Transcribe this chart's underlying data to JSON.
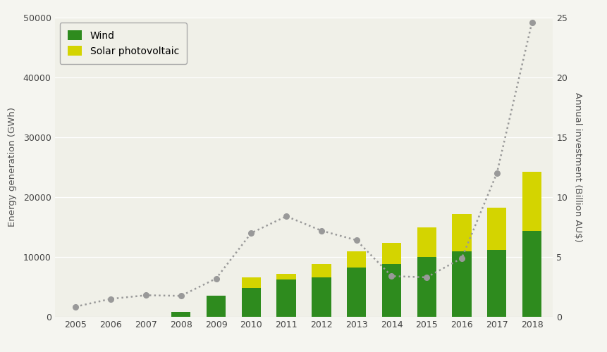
{
  "years": [
    2005,
    2006,
    2007,
    2008,
    2009,
    2010,
    2011,
    2012,
    2013,
    2014,
    2015,
    2016,
    2017,
    2018
  ],
  "wind_gwh": [
    50,
    50,
    50,
    800,
    3500,
    4800,
    6200,
    6600,
    8200,
    8800,
    10000,
    11000,
    11200,
    14400
  ],
  "solar_gwh": [
    0,
    0,
    0,
    0,
    0,
    1800,
    1000,
    2200,
    2800,
    3500,
    5000,
    6200,
    7000,
    9800
  ],
  "investment_bn": [
    0.85,
    1.5,
    1.8,
    1.75,
    3.2,
    7.0,
    8.4,
    7.2,
    6.4,
    3.4,
    3.3,
    4.9,
    12.0,
    24.6
  ],
  "wind_color": "#2e8b1e",
  "solar_color": "#d4d400",
  "investment_color": "#999999",
  "bar_width": 0.55,
  "ylabel_left": "Energy generation (GWh)",
  "ylabel_right": "Annual investment (Billion AU$)",
  "ylim_left": [
    0,
    50000
  ],
  "ylim_right": [
    0,
    25
  ],
  "yticks_left": [
    0,
    10000,
    20000,
    30000,
    40000,
    50000
  ],
  "yticks_right": [
    0,
    5,
    10,
    15,
    20,
    25
  ],
  "legend_labels": [
    "Wind",
    "Solar photovoltaic"
  ],
  "plot_bg_color": "#f0f0e8",
  "fig_bg_color": "#f5f5f0",
  "grid_color": "#ffffff",
  "label_fontsize": 9.5,
  "tick_fontsize": 9,
  "legend_fontsize": 10
}
